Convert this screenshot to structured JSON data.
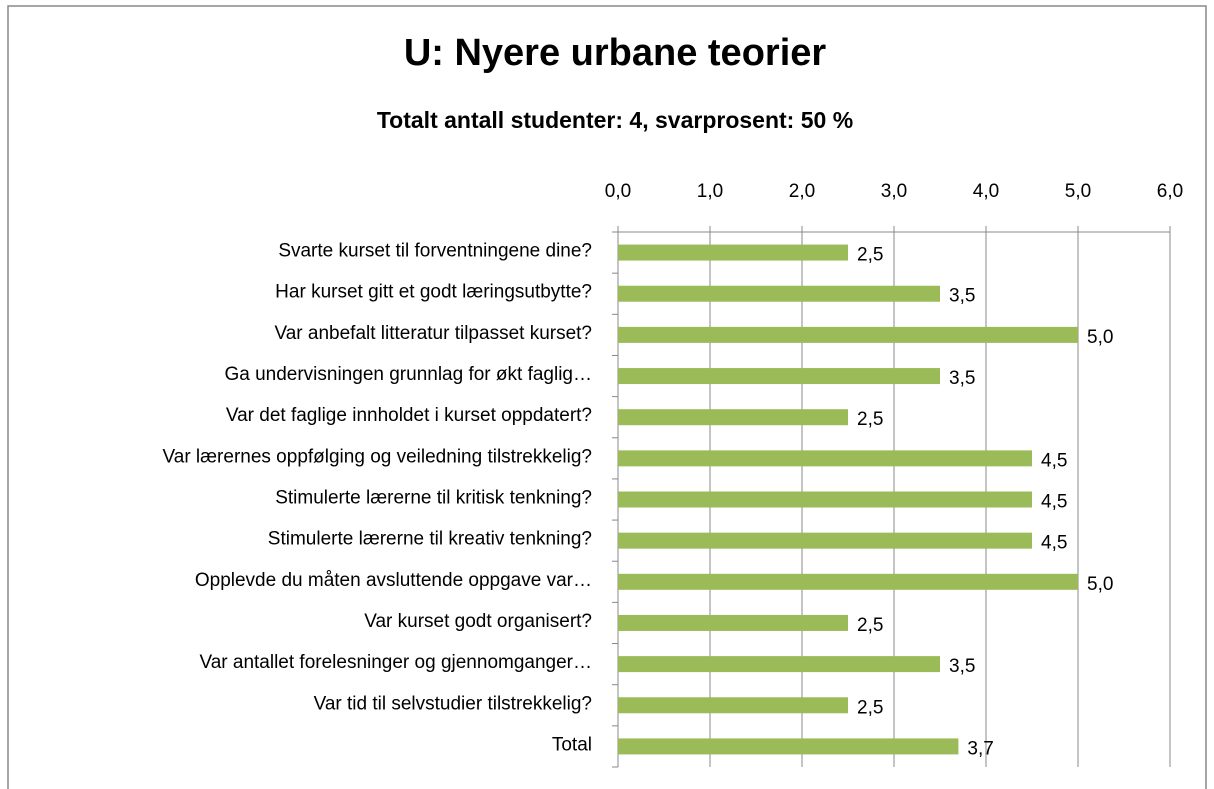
{
  "chart_data": {
    "type": "hbar",
    "title": "U: Nyere urbane teorier",
    "subtitle": "Totalt antall studenter:  4, svarprosent: 50 %",
    "categories": [
      "Svarte kurset til forventningene dine?",
      "Har kurset gitt et godt læringsutbytte?",
      "Var anbefalt litteratur tilpasset kurset?",
      "Ga undervisningen grunnlag for økt faglig…",
      "Var det faglige innholdet i kurset oppdatert?",
      "Var lærernes oppfølging og veiledning tilstrekkelig?",
      "Stimulerte lærerne til kritisk tenkning?",
      "Stimulerte lærerne til kreativ tenkning?",
      "Opplevde du måten avsluttende oppgave var…",
      "Var kurset godt organisert?",
      "Var antallet forelesninger og gjennomganger…",
      "Var tid til selvstudier tilstrekkelig?",
      "Total"
    ],
    "values": [
      2.5,
      3.5,
      5.0,
      3.5,
      2.5,
      4.5,
      4.5,
      4.5,
      5.0,
      2.5,
      3.5,
      2.5,
      3.7
    ],
    "value_labels": [
      "2,5",
      "3,5",
      "5,0",
      "3,5",
      "2,5",
      "4,5",
      "4,5",
      "4,5",
      "5,0",
      "2,5",
      "3,5",
      "2,5",
      "3,7"
    ],
    "color": "#9bbb59",
    "xlim": [
      0,
      6
    ],
    "xticks": [
      {
        "value": 0,
        "label": "0,0"
      },
      {
        "value": 1,
        "label": "1,0"
      },
      {
        "value": 2,
        "label": "2,0"
      },
      {
        "value": 3,
        "label": "3,0"
      },
      {
        "value": 4,
        "label": "4,0"
      },
      {
        "value": 5,
        "label": "5,0"
      },
      {
        "value": 6,
        "label": "6,0"
      }
    ],
    "grid": true
  }
}
